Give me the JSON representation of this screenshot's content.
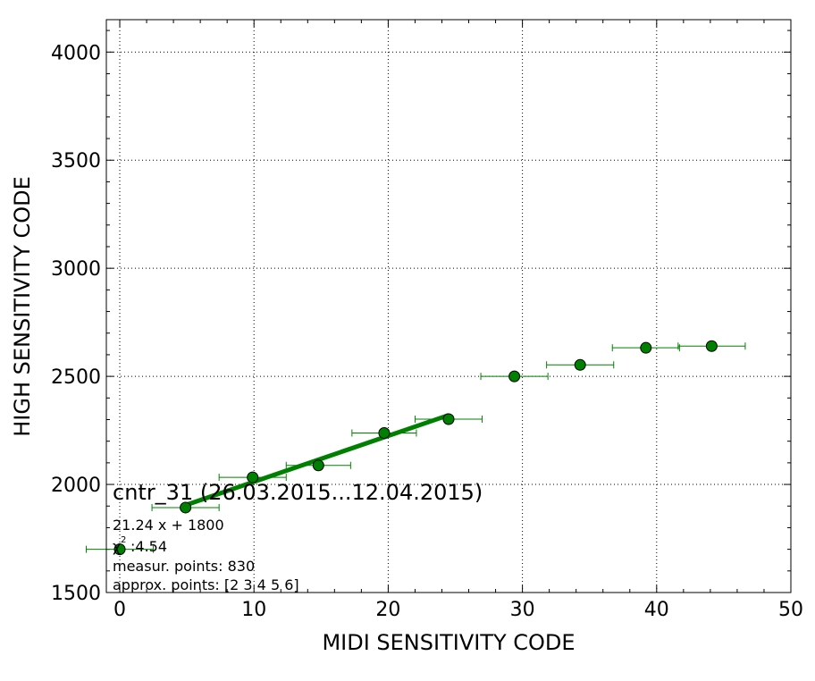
{
  "chart_data": {
    "type": "scatter",
    "title": "",
    "xlabel": "MIDI SENSITIVITY CODE",
    "ylabel": "HIGH SENSITIVITY CODE",
    "xlim": [
      -1,
      50
    ],
    "ylim": [
      1500,
      4150
    ],
    "x_ticks": [
      0,
      10,
      20,
      30,
      40,
      50
    ],
    "x_tick_labels": [
      "0",
      "10",
      "20",
      "30",
      "40",
      "50"
    ],
    "y_ticks": [
      1500,
      2000,
      2500,
      3000,
      3500,
      4000
    ],
    "y_tick_labels": [
      "1500",
      "2000",
      "2500",
      "3000",
      "3500",
      "4000"
    ],
    "grid": true,
    "points": [
      {
        "x": 0,
        "y": 1700,
        "xerr": 2.5,
        "yerr": 12
      },
      {
        "x": 4.9,
        "y": 1893,
        "xerr": 2.5,
        "yerr": 12
      },
      {
        "x": 9.9,
        "y": 2033,
        "xerr": 2.5,
        "yerr": 12
      },
      {
        "x": 14.8,
        "y": 2088,
        "xerr": 2.4,
        "yerr": 12
      },
      {
        "x": 19.7,
        "y": 2238,
        "xerr": 2.4,
        "yerr": 15
      },
      {
        "x": 24.5,
        "y": 2302,
        "xerr": 2.5,
        "yerr": 18
      },
      {
        "x": 29.4,
        "y": 2500,
        "xerr": 2.5,
        "yerr": 10
      },
      {
        "x": 34.3,
        "y": 2553,
        "xerr": 2.5,
        "yerr": 10
      },
      {
        "x": 39.2,
        "y": 2632,
        "xerr": 2.5,
        "yerr": 10
      },
      {
        "x": 44.1,
        "y": 2640,
        "xerr": 2.5,
        "yerr": 12
      }
    ],
    "fit_line": {
      "x_start": 4.9,
      "x_end": 24.5,
      "slope": 21.24,
      "intercept": 1800
    },
    "colors": {
      "marker": "#008000",
      "marker_edge": "#000000",
      "errorbar": "#008000",
      "fit": "#008000",
      "grid": "#000000"
    },
    "annotations": {
      "sensor_label": "cntr_31 (26.03.2015...12.04.2015)",
      "equation": "21.24 x + 1800",
      "chi2_symbol": "χ",
      "chi2_sup": "2",
      "chi2_value": ":4.54",
      "measur_points": "measur. points: 830",
      "approx_points": "approx. points: [2 3 4 5 6]"
    }
  }
}
